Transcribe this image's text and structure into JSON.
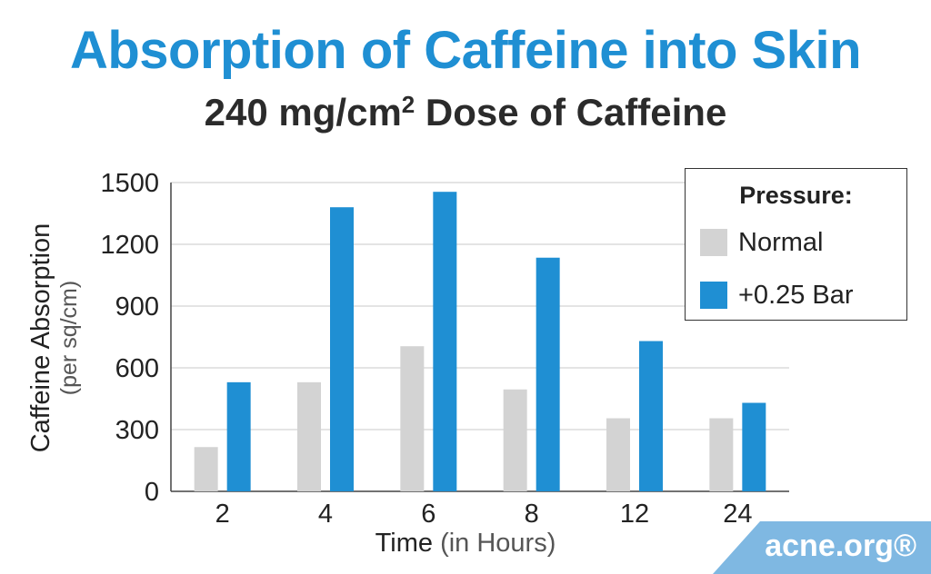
{
  "title": "Absorption of Caffeine into Skin",
  "subtitle": {
    "before": "240 mg/cm",
    "sup": "2",
    "after": " Dose of Caffeine"
  },
  "brand": "acne.org®",
  "colors": {
    "title": "#1f8fd3",
    "normal": "#d3d3d3",
    "pressure": "#1f8fd3",
    "grid": "#c8c8c8"
  },
  "chart_data": {
    "type": "bar",
    "title": "Absorption of Caffeine into Skin",
    "subtitle": "240 mg/cm2 Dose of Caffeine",
    "categories": [
      "2",
      "4",
      "6",
      "8",
      "12",
      "24"
    ],
    "series": [
      {
        "name": "Normal",
        "values": [
          215,
          530,
          705,
          495,
          355,
          355
        ]
      },
      {
        "name": "+0.25 Bar",
        "values": [
          530,
          1380,
          1455,
          1135,
          730,
          430
        ]
      }
    ],
    "xlabel": {
      "main": "Time",
      "sub": "(in Hours)"
    },
    "ylabel": {
      "main": "Caffeine Absorption",
      "sub": "(per sq/cm)"
    },
    "ylim": [
      0,
      1500
    ],
    "yticks": [
      "0",
      "300",
      "600",
      "900",
      "1200",
      "1500"
    ],
    "grid": true,
    "legend": {
      "title": "Pressure:",
      "placement": "top-right"
    }
  }
}
